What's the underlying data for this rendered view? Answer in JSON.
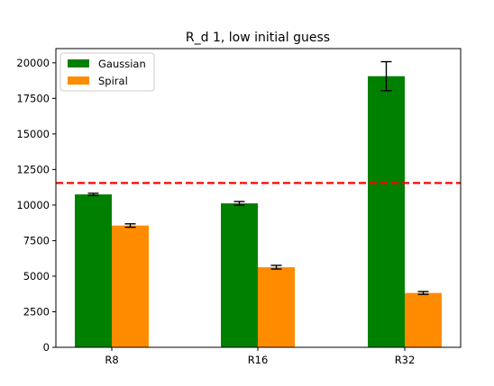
{
  "chart_data": {
    "type": "bar",
    "title": "R_d 1, low initial guess",
    "xlabel": "",
    "ylabel": "",
    "categories": [
      "R8",
      "R16",
      "R32"
    ],
    "ylim": [
      0,
      21000
    ],
    "yticks": [
      0,
      2500,
      5000,
      7500,
      10000,
      12500,
      15000,
      17500,
      20000
    ],
    "ytick_labels": [
      "0",
      "2500",
      "5000",
      "7500",
      "10000",
      "12500",
      "15000",
      "17500",
      "20000"
    ],
    "grid": false,
    "legend_position": "top-left",
    "series": [
      {
        "name": "Gaussian",
        "color": "#008000",
        "values": [
          10750,
          10120,
          19060
        ],
        "errors": [
          80,
          130,
          1020
        ]
      },
      {
        "name": "Spiral",
        "color": "#ff8c00",
        "values": [
          8560,
          5630,
          3820
        ],
        "errors": [
          120,
          130,
          100
        ]
      }
    ],
    "reference_line": {
      "value": 11550,
      "color": "#ff0000",
      "style": "dashed"
    }
  }
}
